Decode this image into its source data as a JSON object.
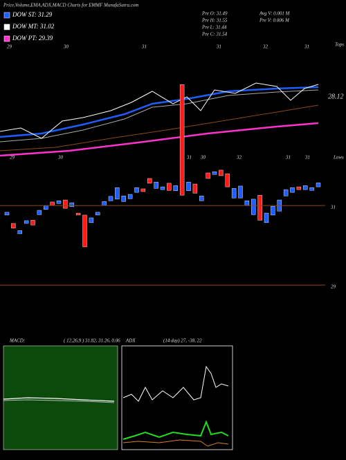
{
  "chart_data": {
    "type": "candlestick",
    "title": "Price,Volume,EMA,ADX,MACD Charts for EMMF MunafaSutra.com",
    "legend": [
      "DOW ST: 31.29",
      "DOW MT: 31.02",
      "DOW PT: 29.39"
    ],
    "legend_colors": [
      "#1e5eff",
      "#ffffff",
      "#ff33cc"
    ],
    "info": [
      "Pre  O: 31.49",
      "Pre  H: 31.55",
      "Pre  L: 31.44",
      "Pre  C: 31.54",
      "Avg  V: 0.001  M",
      "Pre  V: 0.006  M"
    ],
    "tops_label": "Tops",
    "lows_label": "Lows",
    "top_labels": [
      "29",
      "30",
      "31",
      "31",
      "32",
      "31"
    ],
    "low_labels": [
      "29",
      "30",
      "31",
      "30",
      "32",
      "31",
      "31"
    ],
    "ema_label": "28.12",
    "ylim": [
      27.82,
      35.21
    ],
    "yticks": [
      31,
      29
    ],
    "up_color": "#1e5eff",
    "down_color": "#ff1a1a",
    "open": [
      30.76,
      30.55,
      30.29,
      30.55,
      30.63,
      30.77,
      30.9,
      31.09,
      31.05,
      31.14,
      30.97,
      30.81,
      30.76,
      30.57,
      30.76,
      31.0,
      31.12,
      31.16,
      31.1,
      31.17,
      31.33,
      31.42,
      31.68,
      31.43,
      31.4,
      31.56,
      31.37,
      34.04,
      31.37,
      31.54,
      31.12,
      31.82,
      31.78,
      31.89,
      31.8,
      31.19,
      31.19,
      31.0,
      30.77,
      31.26,
      30.57,
      30.76,
      30.86,
      31.24,
      31.33,
      31.47,
      31.4,
      31.38,
      31.47
    ],
    "close": [
      30.83,
      30.43,
      30.37,
      30.62,
      30.51,
      30.88,
      31.0,
      31.0,
      31.12,
      30.93,
      31.07,
      30.76,
      29.96,
      30.69,
      30.83,
      31.1,
      31.23,
      31.45,
      31.24,
      31.28,
      31.45,
      31.35,
      31.56,
      31.59,
      31.47,
      31.38,
      31.5,
      31.26,
      31.59,
      31.31,
      31.24,
      31.68,
      31.85,
      31.75,
      31.47,
      31.43,
      31.49,
      31.12,
      31.16,
      30.63,
      30.81,
      30.98,
      31.14,
      31.4,
      31.45,
      31.4,
      31.5,
      31.45,
      31.57
    ],
    "macd_label": "MACD:",
    "macd_values": "( 12,26,9 ) 31.82,  31.26,  0.06",
    "adx_label": "ADX",
    "adx_values": "(14  day) 27,  -38,  22"
  }
}
